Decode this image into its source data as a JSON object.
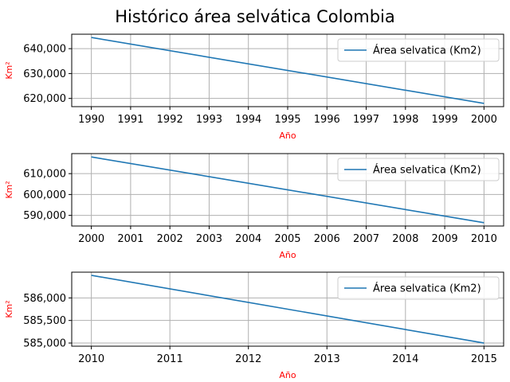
{
  "figure": {
    "title": "Histórico área selvática Colombia",
    "label_color": "#ff0000",
    "line_color": "#1f77b4",
    "grid_color": "#b0b0b0"
  },
  "chart_data": [
    {
      "type": "line",
      "xlabel": "Año",
      "ylabel": "Km²",
      "x": [
        1990,
        2000
      ],
      "series": [
        {
          "name": "Área selvatica (Km2)",
          "values": [
            644500,
            618000
          ]
        }
      ],
      "xticks": [
        1990,
        1991,
        1992,
        1993,
        1994,
        1995,
        1996,
        1997,
        1998,
        1999,
        2000
      ],
      "yticks": [
        620000,
        630000,
        640000
      ],
      "ytick_labels": [
        "620,000",
        "630,000",
        "640,000"
      ],
      "xlim": [
        1989.5,
        2000.5
      ],
      "ylim": [
        616700,
        645800
      ],
      "grid": true,
      "legend": "top-right"
    },
    {
      "type": "line",
      "xlabel": "Año",
      "ylabel": "Km²",
      "x": [
        2000,
        2010
      ],
      "series": [
        {
          "name": "Área selvatica (Km2)",
          "values": [
            618000,
            586500
          ]
        }
      ],
      "xticks": [
        2000,
        2001,
        2002,
        2003,
        2004,
        2005,
        2006,
        2007,
        2008,
        2009,
        2010
      ],
      "yticks": [
        590000,
        600000,
        610000
      ],
      "ytick_labels": [
        "590,000",
        "600,000",
        "610,000"
      ],
      "xlim": [
        1999.5,
        2010.5
      ],
      "ylim": [
        584900,
        619600
      ],
      "grid": true,
      "legend": "top-right"
    },
    {
      "type": "line",
      "xlabel": "Año",
      "ylabel": "Km²",
      "x": [
        2010,
        2015
      ],
      "series": [
        {
          "name": "Área selvatica (Km2)",
          "values": [
            586500,
            585000
          ]
        }
      ],
      "xticks": [
        2010,
        2011,
        2012,
        2013,
        2014,
        2015
      ],
      "yticks": [
        585000,
        585500,
        586000
      ],
      "ytick_labels": [
        "585,000",
        "585,500",
        "586,000"
      ],
      "xlim": [
        2009.75,
        2015.25
      ],
      "ylim": [
        584930,
        586570
      ],
      "grid": true,
      "legend": "top-right"
    }
  ]
}
